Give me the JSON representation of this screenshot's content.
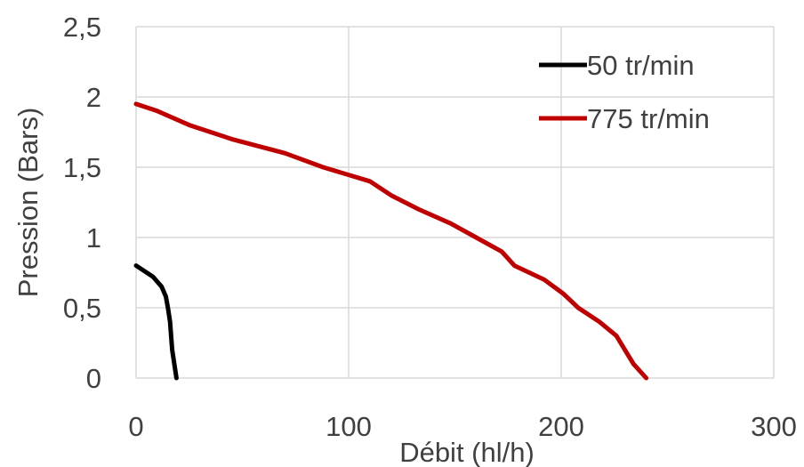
{
  "chart_data": {
    "type": "line",
    "xlabel": "Débit (hl/h)",
    "ylabel": "Pression (Bars)",
    "xlim": [
      0,
      300
    ],
    "ylim": [
      0,
      2.5
    ],
    "x_ticks": [
      "0",
      "100",
      "200",
      "300"
    ],
    "y_ticks": [
      "0",
      "0,5",
      "1",
      "1,5",
      "2",
      "2,5"
    ],
    "grid": true,
    "legend_position": "top-right",
    "series": [
      {
        "name": "50 tr/min",
        "color": "#000000",
        "x": [
          0,
          8,
          12,
          14,
          15,
          16,
          17,
          19
        ],
        "y": [
          0.8,
          0.72,
          0.65,
          0.58,
          0.5,
          0.4,
          0.2,
          0
        ]
      },
      {
        "name": "775 tr/min",
        "color": "#c00000",
        "x": [
          0,
          10,
          25,
          45,
          70,
          88,
          110,
          120,
          133,
          148,
          160,
          172,
          178,
          192,
          201,
          208,
          218,
          226,
          230,
          234,
          240
        ],
        "y": [
          1.95,
          1.9,
          1.8,
          1.7,
          1.6,
          1.5,
          1.4,
          1.3,
          1.2,
          1.1,
          1.0,
          0.9,
          0.8,
          0.7,
          0.6,
          0.5,
          0.4,
          0.3,
          0.2,
          0.1,
          0
        ]
      }
    ]
  }
}
